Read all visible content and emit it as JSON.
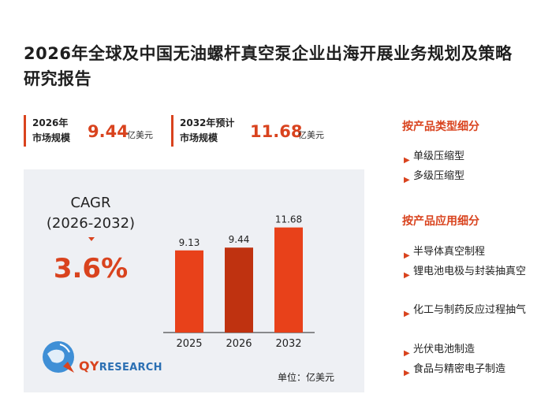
{
  "title": "2026年全球及中国无油螺杆真空泵企业出海开展业务规划及策略研究报告",
  "stats": [
    {
      "label_line1": "2026年",
      "label_line2": "市场规模",
      "value": "9.44",
      "unit": "亿美元"
    },
    {
      "label_line1": "2032年预计",
      "label_line2": "市场规模",
      "value": "11.68",
      "unit": "亿美元"
    }
  ],
  "cagr": {
    "label": "CAGR",
    "period": "(2026-2032)",
    "value": "3.6%"
  },
  "logo": {
    "brand_prefix": "QY",
    "brand_suffix": "RESEARCH"
  },
  "chart_data": {
    "type": "bar",
    "categories": [
      "2025",
      "2026",
      "2032"
    ],
    "values": [
      9.13,
      9.44,
      11.68
    ],
    "value_labels": [
      "9.13",
      "9.44",
      "11.68"
    ],
    "ylim": [
      0,
      12
    ],
    "bar_colors": [
      "#e8411a",
      "#bf3210",
      "#e8411a"
    ],
    "unit_note": "单位：亿美元"
  },
  "segments": {
    "by_type": {
      "heading": "按产品类型细分",
      "items": [
        "单级压缩型",
        "多级压缩型"
      ]
    },
    "by_application": {
      "heading": "按产品应用细分",
      "items": [
        "半导体真空制程",
        "锂电池电极与封装抽真空",
        "化工与制药反应过程抽气",
        "光伏电池制造",
        "食品与精密电子制造"
      ]
    }
  },
  "colors": {
    "accent": "#d9431e",
    "panel": "#eef0f4"
  }
}
